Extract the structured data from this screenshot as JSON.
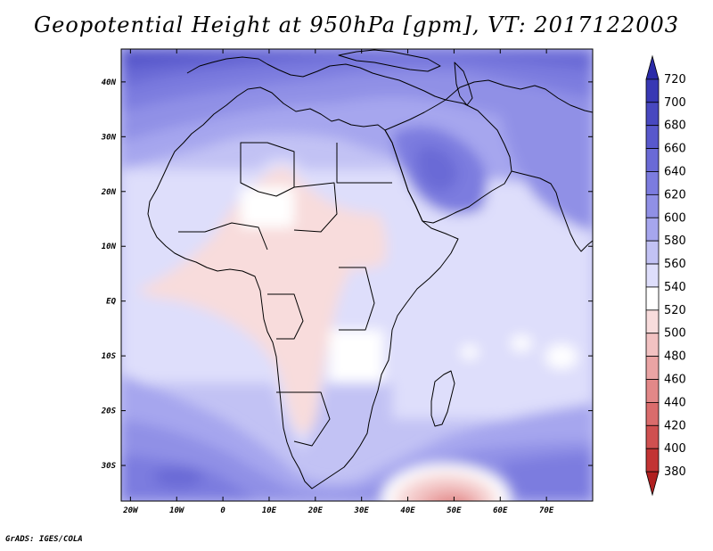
{
  "title": "Geopotential Height at 950hPa [gpm], VT: 2017122003",
  "credit": "GrADS: IGES/COLA",
  "map": {
    "lat_labels": [
      "40N",
      "30N",
      "20N",
      "10N",
      "EQ",
      "10S",
      "20S",
      "30S"
    ],
    "lon_labels": [
      "20W",
      "10W",
      "0",
      "10E",
      "20E",
      "30E",
      "40E",
      "50E",
      "60E",
      "70E"
    ],
    "lat_values": [
      40,
      30,
      20,
      10,
      0,
      -10,
      -20,
      -30
    ],
    "lon_values": [
      -20,
      -10,
      0,
      10,
      20,
      30,
      40,
      50,
      60,
      70
    ],
    "lon_range": [
      -22,
      80
    ],
    "lat_range": [
      -36.5,
      46
    ]
  },
  "colorbar": {
    "levels": [
      720,
      700,
      680,
      660,
      640,
      620,
      600,
      580,
      560,
      540,
      520,
      500,
      480,
      460,
      440,
      420,
      400,
      380
    ],
    "colors": [
      "#2a2aa8",
      "#3838b4",
      "#4848c0",
      "#5858cc",
      "#6a6ad6",
      "#7c7cdf",
      "#9090e6",
      "#a6a6ee",
      "#c2c2f4",
      "#dedefb",
      "#ffffff",
      "#f8dcdc",
      "#f2c2c2",
      "#eaa4a4",
      "#e28888",
      "#da6c6c",
      "#cf5050",
      "#c23434",
      "#b02020"
    ]
  }
}
